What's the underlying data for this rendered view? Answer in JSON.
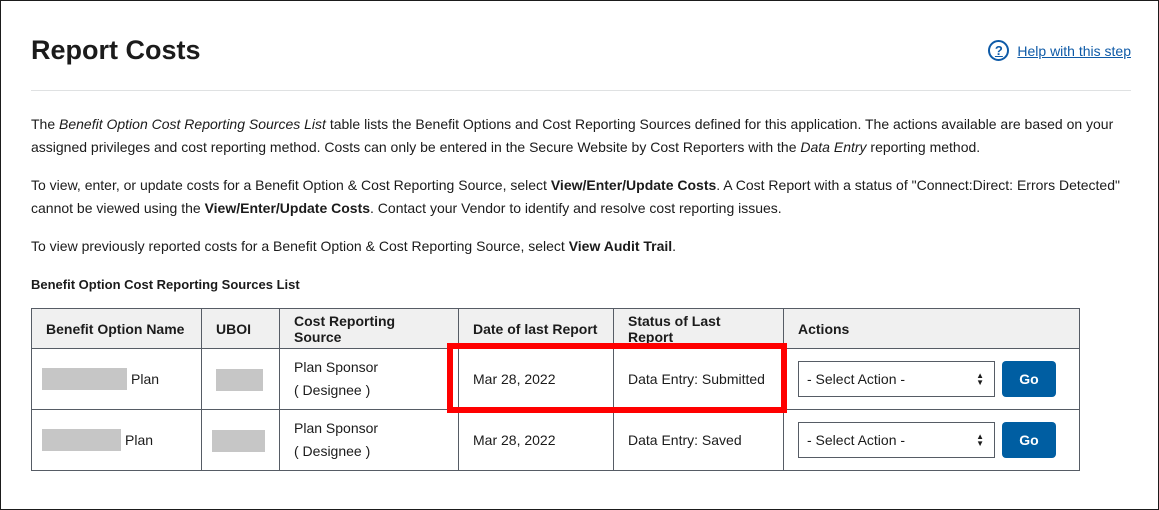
{
  "page": {
    "title": "Report Costs",
    "help_link": "Help with this step"
  },
  "intro": {
    "p1_a": "The ",
    "p1_em1": "Benefit Option Cost Reporting Sources List",
    "p1_b": " table lists the Benefit Options and Cost Reporting Sources defined for this application. The actions available are based on your assigned privileges and cost reporting method. Costs can only be entered in the Secure Website by Cost Reporters with the ",
    "p1_em2": "Data Entry",
    "p1_c": " reporting method.",
    "p2_a": "To view, enter, or update costs for a Benefit Option & Cost Reporting Source, select ",
    "p2_b1": "View/Enter/Update Costs",
    "p2_b": ". A Cost Report with a status of \"Connect:Direct: Errors Detected\" cannot be viewed using the ",
    "p2_b2": "View/Enter/Update Costs",
    "p2_c": ". Contact your Vendor to identify and resolve cost reporting issues.",
    "p3_a": "To view previously reported costs for a Benefit Option & Cost Reporting Source, select ",
    "p3_b": "View Audit Trail",
    "p3_c": "."
  },
  "table": {
    "caption": "Benefit Option Cost Reporting Sources List",
    "headers": [
      "Benefit Option Name",
      "UBOI",
      "Cost Reporting Source",
      "Date of last Report",
      "Status of Last Report",
      "Actions"
    ],
    "rows": [
      {
        "plan_suffix": "Plan",
        "source_line1": "Plan Sponsor",
        "source_line2": "( Designee )",
        "date": "Mar 28, 2022",
        "status": "Data Entry: Submitted",
        "select_value": "- Select Action -",
        "go_label": "Go"
      },
      {
        "plan_suffix": "Plan",
        "source_line1": "Plan Sponsor",
        "source_line2": "( Designee )",
        "date": "Mar 28, 2022",
        "status": "Data Entry: Saved",
        "select_value": "- Select Action -",
        "go_label": "Go"
      }
    ]
  },
  "colors": {
    "link": "#0e5aa7",
    "button": "#005ea2",
    "highlight": "#ff0000",
    "redaction": "#c6c6c6"
  },
  "icons": {
    "help": "question-circle-icon",
    "select_arrow": "sort-arrows-icon"
  }
}
